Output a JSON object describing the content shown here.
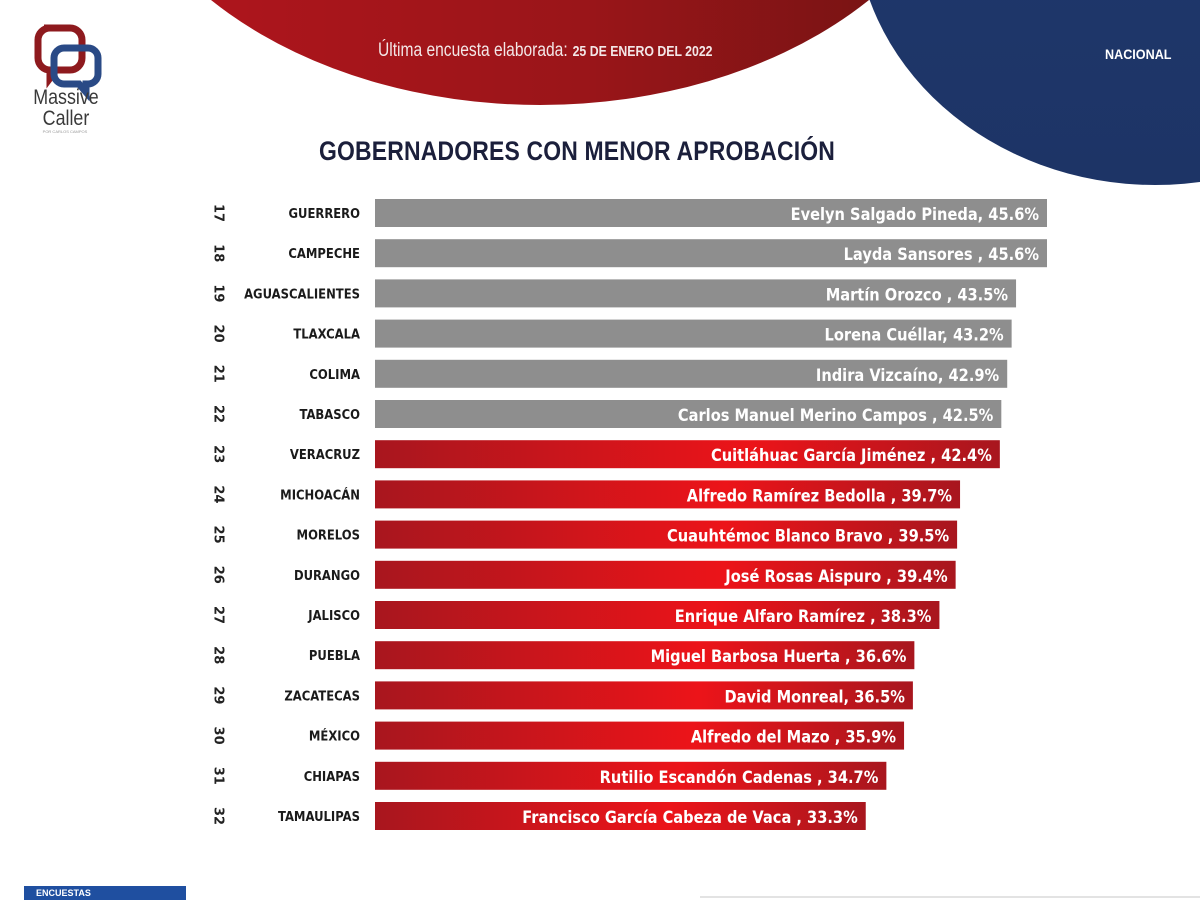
{
  "brand": {
    "name_line1": "Massive",
    "name_line2": "Caller",
    "tagline": "POR CARLOS CAMPOS"
  },
  "header": {
    "survey_label": "Última encuesta elaborada:",
    "survey_date": "25 DE ENERO DEL 2022",
    "scope": "NACIONAL"
  },
  "footer": {
    "tab_label": "ENCUESTAS"
  },
  "colors": {
    "gray_bar": "#8e8e8e",
    "red_bar_dark": "#a8161e",
    "red_bar_light": "#ec1419",
    "blue_accent": "#1d3466",
    "title": "#1b1f3b"
  },
  "chart_data": {
    "type": "bar",
    "orientation": "horizontal",
    "title": "GOBERNADORES CON MENOR APROBACIÓN",
    "xlabel": "",
    "ylabel": "",
    "xlim": [
      0,
      45.6
    ],
    "grid": false,
    "legend": "none",
    "ranks": [
      "17",
      "18",
      "19",
      "20",
      "21",
      "22",
      "23",
      "24",
      "25",
      "26",
      "27",
      "28",
      "29",
      "30",
      "31",
      "32"
    ],
    "categories": [
      "GUERRERO",
      "CAMPECHE",
      "AGUASCALIENTES",
      "TLAXCALA",
      "COLIMA",
      "TABASCO",
      "VERACRUZ",
      "MICHOACÁN",
      "MORELOS",
      "DURANGO",
      "JALISCO",
      "PUEBLA",
      "ZACATECAS",
      "MÉXICO",
      "CHIAPAS",
      "TAMAULIPAS"
    ],
    "governors": [
      "Evelyn Salgado Pineda",
      "Layda Sansores ",
      "Martín Orozco ",
      "Lorena Cuéllar",
      "Indira Vizcaíno",
      "Carlos Manuel Merino Campos ",
      "Cuitláhuac García Jiménez ",
      "Alfredo Ramírez Bedolla ",
      "Cuauhtémoc Blanco Bravo ",
      "José Rosas Aispuro ",
      "Enrique Alfaro Ramírez ",
      "Miguel Barbosa Huerta ",
      "David Monreal",
      "Alfredo del Mazo ",
      "Rutilio Escandón Cadenas ",
      "Francisco García Cabeza de Vaca "
    ],
    "values": [
      45.6,
      45.6,
      43.5,
      43.2,
      42.9,
      42.5,
      42.4,
      39.7,
      39.5,
      39.4,
      38.3,
      36.6,
      36.5,
      35.9,
      34.7,
      33.3
    ],
    "bar_labels": [
      "Evelyn Salgado Pineda, 45.6%",
      "Layda Sansores , 45.6%",
      "Martín Orozco , 43.5%",
      "Lorena Cuéllar, 43.2%",
      "Indira Vizcaíno, 42.9%",
      "Carlos Manuel Merino Campos , 42.5%",
      "Cuitláhuac García Jiménez , 42.4%",
      "Alfredo Ramírez Bedolla , 39.7%",
      "Cuauhtémoc Blanco Bravo , 39.5%",
      "José Rosas Aispuro , 39.4%",
      "Enrique Alfaro Ramírez , 38.3%",
      "Miguel Barbosa Huerta , 36.6%",
      "David Monreal, 36.5%",
      "Alfredo del Mazo , 35.9%",
      "Rutilio Escandón Cadenas , 34.7%",
      "Francisco García Cabeza de Vaca , 33.3%"
    ],
    "color_groups": [
      "gray",
      "gray",
      "gray",
      "gray",
      "gray",
      "gray",
      "red",
      "red",
      "red",
      "red",
      "red",
      "red",
      "red",
      "red",
      "red",
      "red"
    ]
  }
}
